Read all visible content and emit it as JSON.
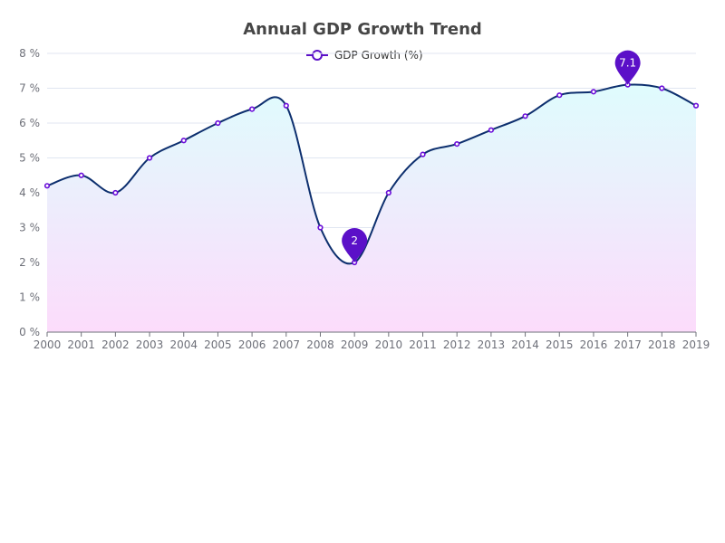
{
  "chart_data": {
    "type": "line",
    "title": "Annual GDP Growth Trend",
    "categories": [
      "2000",
      "2001",
      "2002",
      "2003",
      "2004",
      "2005",
      "2006",
      "2007",
      "2008",
      "2009",
      "2010",
      "2011",
      "2012",
      "2013",
      "2014",
      "2015",
      "2016",
      "2017",
      "2018",
      "2019"
    ],
    "series": [
      {
        "name": "GDP Growth (%)",
        "values": [
          4.2,
          4.5,
          4.0,
          5.0,
          5.5,
          6.0,
          6.4,
          6.5,
          3.0,
          2.0,
          4.0,
          5.1,
          5.4,
          5.8,
          6.2,
          6.8,
          6.9,
          7.1,
          7.0,
          6.5
        ]
      }
    ],
    "ylim": [
      0,
      8
    ],
    "yticks": [
      0,
      1,
      2,
      3,
      4,
      5,
      6,
      7,
      8
    ],
    "ytick_labels": [
      "0 %",
      "1 %",
      "2 %",
      "3 %",
      "4 %",
      "5 %",
      "6 %",
      "7 %",
      "8 %"
    ],
    "xlabel": "",
    "ylabel": "",
    "grid": true,
    "smooth": true,
    "legend_position": "top-center",
    "annotations": [
      {
        "type": "max",
        "category": "2017",
        "label": "7.1"
      },
      {
        "type": "min",
        "category": "2009",
        "label": "2"
      }
    ],
    "colors": {
      "line": "#0d2f6e",
      "marker": "#6a0dd9",
      "pin": "#5b10c8",
      "area_top": "#dffcfd",
      "area_bottom": "#fcdcfb",
      "grid": "#e0e6f1",
      "axis": "#6e7079"
    }
  }
}
